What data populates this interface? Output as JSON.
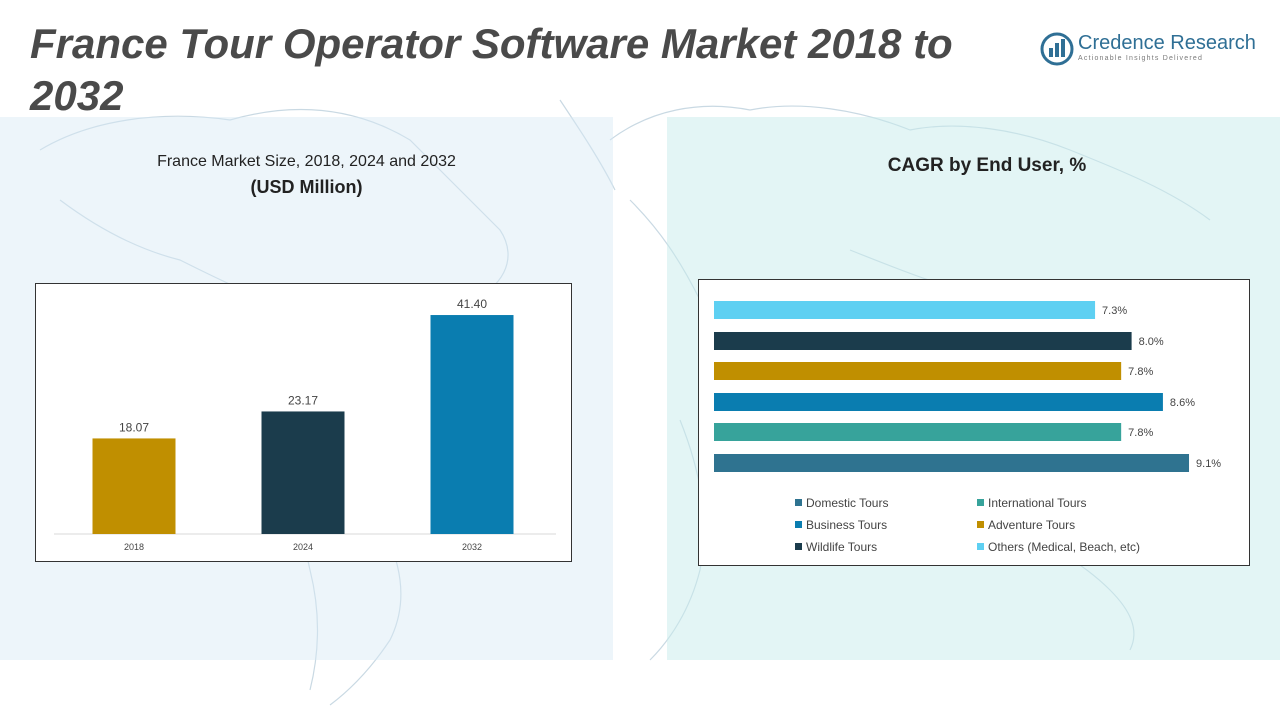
{
  "page": {
    "title": "France Tour Operator Software Market 2018 to 2032"
  },
  "logo": {
    "name": "Credence Research",
    "tagline": "Actionable Insights Delivered",
    "icon": "bar-chart-logo-icon"
  },
  "colors": {
    "gold": "#C08F00",
    "navy": "#1B3C4C",
    "blue": "#0A7DB0",
    "teal": "#37A39B",
    "steel": "#2F7390",
    "sky": "#5ED0F2"
  },
  "chart_data": [
    {
      "type": "bar",
      "title": "France Market Size, 2018, 2024 and 2032",
      "subtitle": "(USD Million)",
      "categories": [
        "2018",
        "2024",
        "2032"
      ],
      "values": [
        18.07,
        23.17,
        41.4
      ],
      "value_labels": [
        "18.07",
        "23.17",
        "41.40"
      ],
      "colors": [
        "#C08F00",
        "#1B3C4C",
        "#0A7DB0"
      ],
      "xlabel": "",
      "ylabel": "",
      "ylim": [
        0,
        45
      ],
      "grid": false
    },
    {
      "type": "bar",
      "orientation": "horizontal",
      "title": "CAGR by End User, %",
      "series": [
        {
          "name": "Others (Medical, Beach, etc)",
          "value": 7.3,
          "label": "7.3%",
          "color": "#5ED0F2"
        },
        {
          "name": "Wildlife Tours",
          "value": 8.0,
          "label": "8.0%",
          "color": "#1B3C4C"
        },
        {
          "name": "Adventure Tours",
          "value": 7.8,
          "label": "7.8%",
          "color": "#C08F00"
        },
        {
          "name": "Business Tours",
          "value": 8.6,
          "label": "8.6%",
          "color": "#0A7DB0"
        },
        {
          "name": "International Tours",
          "value": 7.8,
          "label": "7.8%",
          "color": "#37A39B"
        },
        {
          "name": "Domestic Tours",
          "value": 9.1,
          "label": "9.1%",
          "color": "#2F7390"
        }
      ],
      "legend": [
        {
          "label": "Domestic Tours",
          "color": "#2F7390"
        },
        {
          "label": "International Tours",
          "color": "#37A39B"
        },
        {
          "label": "Business Tours",
          "color": "#0A7DB0"
        },
        {
          "label": "Adventure Tours",
          "color": "#C08F00"
        },
        {
          "label": "Wildlife Tours",
          "color": "#1B3C4C"
        },
        {
          "label": "Others (Medical, Beach, etc)",
          "color": "#5ED0F2"
        }
      ],
      "xlim": [
        0,
        10
      ],
      "legend_position": "bottom",
      "grid": false
    }
  ]
}
